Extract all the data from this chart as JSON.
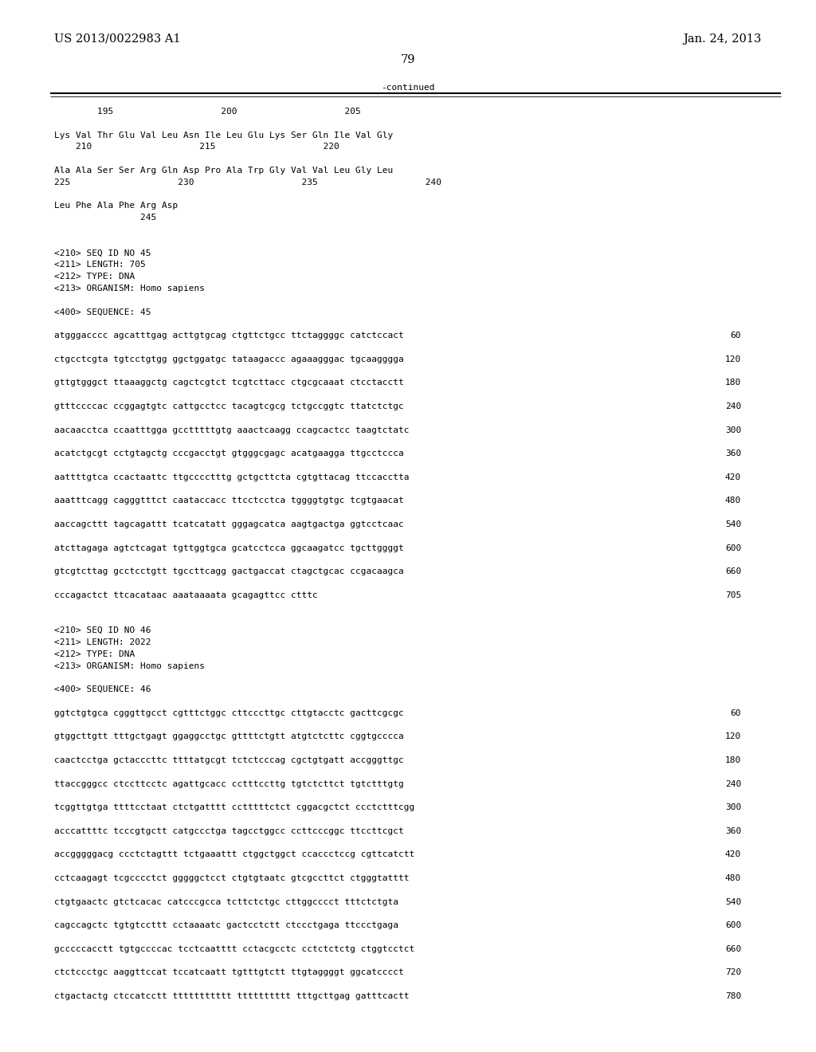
{
  "header_left": "US 2013/0022983 A1",
  "header_right": "Jan. 24, 2013",
  "page_number": "79",
  "continued_label": "-continued",
  "background_color": "#ffffff",
  "text_color": "#000000",
  "font_size_header": 10.5,
  "font_size_mono": 8.0,
  "content_lines": [
    {
      "type": "num_row",
      "text": "        195                    200                    205"
    },
    {
      "type": "blank"
    },
    {
      "type": "seq_row",
      "text": "Lys Val Thr Glu Val Leu Asn Ile Leu Glu Lys Ser Gln Ile Val Gly"
    },
    {
      "type": "num_row",
      "text": "    210                    215                    220"
    },
    {
      "type": "blank"
    },
    {
      "type": "seq_row",
      "text": "Ala Ala Ser Ser Arg Gln Asp Pro Ala Trp Gly Val Val Leu Gly Leu"
    },
    {
      "type": "num_row",
      "text": "225                    230                    235                    240"
    },
    {
      "type": "blank"
    },
    {
      "type": "seq_row",
      "text": "Leu Phe Ala Phe Arg Asp"
    },
    {
      "type": "num_row",
      "text": "                245"
    },
    {
      "type": "blank"
    },
    {
      "type": "blank"
    },
    {
      "type": "meta_row",
      "text": "<210> SEQ ID NO 45"
    },
    {
      "type": "meta_row",
      "text": "<211> LENGTH: 705"
    },
    {
      "type": "meta_row",
      "text": "<212> TYPE: DNA"
    },
    {
      "type": "meta_row",
      "text": "<213> ORGANISM: Homo sapiens"
    },
    {
      "type": "blank"
    },
    {
      "type": "meta_row",
      "text": "<400> SEQUENCE: 45"
    },
    {
      "type": "blank"
    },
    {
      "type": "dna_row",
      "text": "atgggacccc agcatttgag acttgtgcag ctgttctgcc ttctaggggc catctccact",
      "num": "60"
    },
    {
      "type": "blank"
    },
    {
      "type": "dna_row",
      "text": "ctgcctcgta tgtcctgtgg ggctggatgc tataagaccc agaaagggac tgcaagggga",
      "num": "120"
    },
    {
      "type": "blank"
    },
    {
      "type": "dna_row",
      "text": "gttgtgggct ttaaaggctg cagctcgtct tcgtcttacc ctgcgcaaat ctcctacctt",
      "num": "180"
    },
    {
      "type": "blank"
    },
    {
      "type": "dna_row",
      "text": "gtttccccac ccggagtgtc cattgcctcc tacagtcgcg tctgccggtc ttatctctgc",
      "num": "240"
    },
    {
      "type": "blank"
    },
    {
      "type": "dna_row",
      "text": "aacaacctca ccaatttgga gcctttttgtg aaactcaagg ccagcactcc taagtctatc",
      "num": "300"
    },
    {
      "type": "blank"
    },
    {
      "type": "dna_row",
      "text": "acatctgcgt cctgtagctg cccgacctgt gtgggcgagc acatgaagga ttgcctccca",
      "num": "360"
    },
    {
      "type": "blank"
    },
    {
      "type": "dna_row",
      "text": "aattttgtca ccactaattc ttgcccctttg gctgcttcta cgtgttacag ttccacctta",
      "num": "420"
    },
    {
      "type": "blank"
    },
    {
      "type": "dna_row",
      "text": "aaatttcagg cagggtttct caataccacc ttcctcctca tggggtgtgc tcgtgaacat",
      "num": "480"
    },
    {
      "type": "blank"
    },
    {
      "type": "dna_row",
      "text": "aaccagcttt tagcagattt tcatcatatt gggagcatca aagtgactga ggtcctcaac",
      "num": "540"
    },
    {
      "type": "blank"
    },
    {
      "type": "dna_row",
      "text": "atcttagaga agtctcagat tgttggtgca gcatcctcca ggcaagatcc tgcttggggt",
      "num": "600"
    },
    {
      "type": "blank"
    },
    {
      "type": "dna_row",
      "text": "gtcgtcttag gcctcctgtt tgccttcagg gactgaccat ctagctgcac ccgacaagca",
      "num": "660"
    },
    {
      "type": "blank"
    },
    {
      "type": "dna_row",
      "text": "cccagactct ttcacataac aaataaaata gcagagttcc ctttc",
      "num": "705"
    },
    {
      "type": "blank"
    },
    {
      "type": "blank"
    },
    {
      "type": "meta_row",
      "text": "<210> SEQ ID NO 46"
    },
    {
      "type": "meta_row",
      "text": "<211> LENGTH: 2022"
    },
    {
      "type": "meta_row",
      "text": "<212> TYPE: DNA"
    },
    {
      "type": "meta_row",
      "text": "<213> ORGANISM: Homo sapiens"
    },
    {
      "type": "blank"
    },
    {
      "type": "meta_row",
      "text": "<400> SEQUENCE: 46"
    },
    {
      "type": "blank"
    },
    {
      "type": "dna_row",
      "text": "ggtctgtgca cgggttgcct cgtttctggc cttcccttgc cttgtacctc gacttcgcgc",
      "num": "60"
    },
    {
      "type": "blank"
    },
    {
      "type": "dna_row",
      "text": "gtggcttgtt tttgctgagt ggaggcctgc gttttctgtt atgtctcttc cggtgcccca",
      "num": "120"
    },
    {
      "type": "blank"
    },
    {
      "type": "dna_row",
      "text": "caactcctga gctacccttc ttttatgcgt tctctcccag cgctgtgatt accgggttgc",
      "num": "180"
    },
    {
      "type": "blank"
    },
    {
      "type": "dna_row",
      "text": "ttaccgggcc ctccttcctc agattgcacc cctttccttg tgtctcttct tgtctttgtg",
      "num": "240"
    },
    {
      "type": "blank"
    },
    {
      "type": "dna_row",
      "text": "tcggttgtga ttttcctaat ctctgatttt cctttttctct cggacgctct ccctctttcgg",
      "num": "300"
    },
    {
      "type": "blank"
    },
    {
      "type": "dna_row",
      "text": "acccattttc tcccgtgctt catgccctga tagcctggcc ccttcccggc ttccttcgct",
      "num": "360"
    },
    {
      "type": "blank"
    },
    {
      "type": "dna_row",
      "text": "accgggggacg ccctctagttt tctgaaattt ctggctggct ccaccctccg cgttcatctt",
      "num": "420"
    },
    {
      "type": "blank"
    },
    {
      "type": "dna_row",
      "text": "cctcaagagt tcgcccctct gggggctcct ctgtgtaatc gtcgccttct ctgggtatttt",
      "num": "480"
    },
    {
      "type": "blank"
    },
    {
      "type": "dna_row",
      "text": "ctgtgaactc gtctcacac catcccgcca tcttctctgc cttggcccct tttctctgta",
      "num": "540"
    },
    {
      "type": "blank"
    },
    {
      "type": "dna_row",
      "text": "cagccagctc tgtgtccttt cctaaaatc gactcctctt ctccctgaga ttccctgaga",
      "num": "600"
    },
    {
      "type": "blank"
    },
    {
      "type": "dna_row",
      "text": "gcccccacctt tgtgccccac tcctcaatttt cctacgcctc cctctctctg ctggtcctct",
      "num": "660"
    },
    {
      "type": "blank"
    },
    {
      "type": "dna_row",
      "text": "ctctccctgc aaggttccat tccatcaatt tgtttgtctt ttgtaggggt ggcatcccct",
      "num": "720"
    },
    {
      "type": "blank"
    },
    {
      "type": "dna_row",
      "text": "ctgactactg ctccatcctt ttttttttttt tttttttttt tttgcttgag gatttcactt",
      "num": "780"
    }
  ]
}
